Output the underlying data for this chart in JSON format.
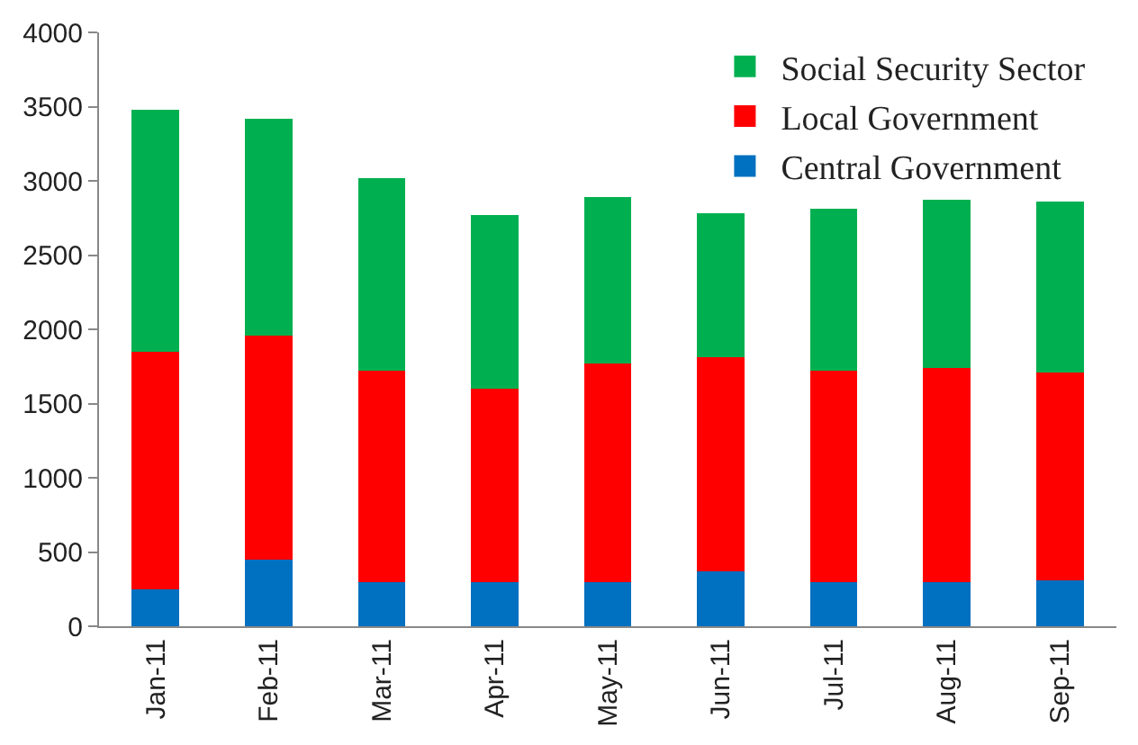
{
  "chart_data": {
    "type": "bar",
    "stacked": true,
    "categories": [
      "Jan-11",
      "Feb-11",
      "Mar-11",
      "Apr-11",
      "May-11",
      "Jun-11",
      "Jul-11",
      "Aug-11",
      "Sep-11"
    ],
    "series": [
      {
        "name": "Central Government",
        "color": "#0070c0",
        "values": [
          250,
          450,
          300,
          300,
          300,
          370,
          300,
          300,
          310
        ]
      },
      {
        "name": "Local Government",
        "color": "#ff0000",
        "values": [
          1600,
          1510,
          1420,
          1300,
          1470,
          1440,
          1420,
          1440,
          1400
        ]
      },
      {
        "name": "Social Security Sector",
        "color": "#00b050",
        "values": [
          1630,
          1460,
          1300,
          1170,
          1120,
          970,
          1090,
          1130,
          1150
        ]
      }
    ],
    "ylim": [
      0,
      4000
    ],
    "yticks": [
      0,
      500,
      1000,
      1500,
      2000,
      2500,
      3000,
      3500,
      4000
    ],
    "legend": "top right"
  }
}
